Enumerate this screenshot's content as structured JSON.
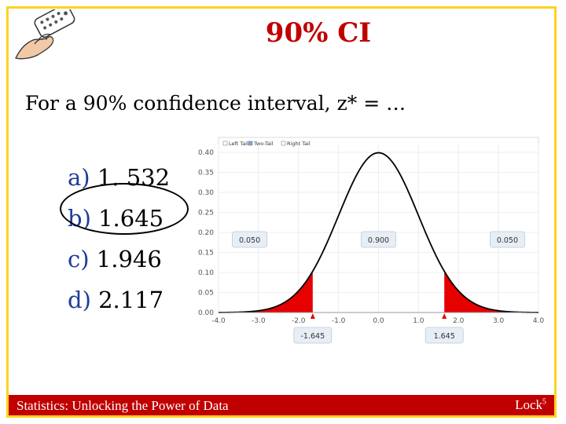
{
  "slide": {
    "title": "90% CI",
    "question": "For a 90% confidence interval, z* = …",
    "options": [
      {
        "letter": "a)",
        "value": "1. 532"
      },
      {
        "letter": "b)",
        "value": "1.645"
      },
      {
        "letter": "c)",
        "value": "1.946"
      },
      {
        "letter": "d)",
        "value": "2.117"
      }
    ],
    "circled_option": "b)",
    "clicker_icon": "hand-holding-clicker-icon"
  },
  "footer": {
    "left": "Statistics: Unlocking the Power of Data",
    "right": "Lock",
    "right_sup": "5"
  },
  "colors": {
    "title": "#c00000",
    "footer_bg": "#c00000",
    "frame_border": "#ffd21f",
    "option_letter": "#1f3b99",
    "tail_fill": "#e60000",
    "curve": "#000000"
  },
  "chart_data": {
    "type": "area",
    "distribution": "standard normal",
    "tail_options": [
      "Left Tail",
      "Two-Tail",
      "Right Tail"
    ],
    "selected_tail_option": "Two-Tail",
    "x_ticks": [
      "-4.0",
      "-3.0",
      "-2.0",
      "-1.0",
      "0.0",
      "1.0",
      "2.0",
      "3.0",
      "4.0"
    ],
    "y_ticks": [
      "0.00",
      "0.05",
      "0.10",
      "0.15",
      "0.20",
      "0.25",
      "0.30",
      "0.35",
      "0.40"
    ],
    "xlim": [
      -4.0,
      4.0
    ],
    "ylim": [
      0,
      0.4
    ],
    "region_labels": [
      "0.050",
      "0.900",
      "0.050"
    ],
    "cutoffs": [
      -1.645,
      1.645
    ],
    "cutoff_labels": [
      "-1.645",
      "1.645"
    ],
    "grid": true
  }
}
